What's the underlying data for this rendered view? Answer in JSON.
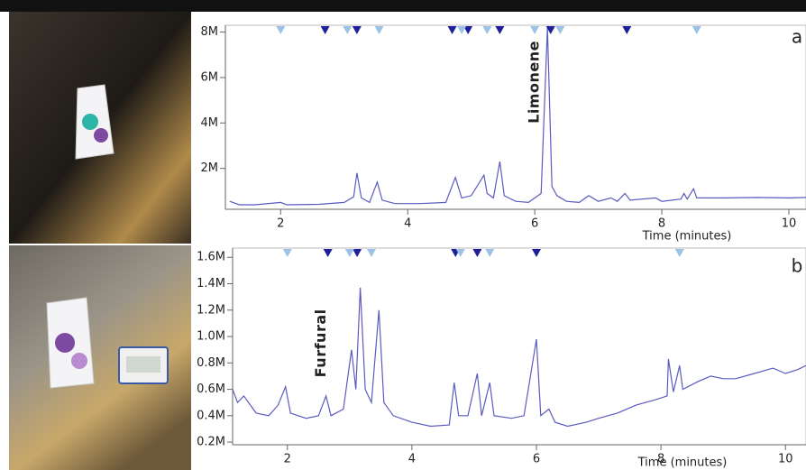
{
  "chart_data": [
    {
      "type": "line",
      "panel": "a",
      "x_label": "Time (minutes)",
      "annotations": [
        "Limonene"
      ],
      "x": [
        1.2,
        1.35,
        1.6,
        2.0,
        2.1,
        2.6,
        3.0,
        3.15,
        3.2,
        3.27,
        3.4,
        3.52,
        3.6,
        3.8,
        4.2,
        4.6,
        4.75,
        4.85,
        5.0,
        5.2,
        5.25,
        5.35,
        5.45,
        5.52,
        5.7,
        5.9,
        6.1,
        6.2,
        6.27,
        6.35,
        6.5,
        6.7,
        6.85,
        7.0,
        7.2,
        7.3,
        7.42,
        7.5,
        7.9,
        8.0,
        8.3,
        8.35,
        8.4,
        8.5,
        8.55,
        9.0,
        9.5,
        10.0,
        10.27
      ],
      "series": [
        {
          "color": "#5b5bc0",
          "values": [
            0.55,
            0.4,
            0.4,
            0.5,
            0.4,
            0.42,
            0.5,
            0.75,
            1.8,
            0.7,
            0.5,
            1.4,
            0.6,
            0.45,
            0.45,
            0.5,
            1.6,
            0.7,
            0.8,
            1.7,
            0.9,
            0.7,
            2.3,
            0.8,
            0.55,
            0.5,
            0.9,
            8.2,
            1.2,
            0.8,
            0.55,
            0.5,
            0.8,
            0.55,
            0.7,
            0.55,
            0.9,
            0.6,
            0.7,
            0.55,
            0.65,
            0.9,
            0.65,
            1.1,
            0.7,
            0.7,
            0.72,
            0.7,
            0.72
          ]
        }
      ],
      "markers": [
        {
          "color": "#1f1f99",
          "x": [
            2.7,
            3.2,
            4.7,
            4.95,
            5.45,
            6.25,
            7.45
          ]
        },
        {
          "color": "#9cc3e6",
          "x": [
            2.0,
            3.05,
            3.55,
            4.85,
            5.25,
            6.0,
            6.4,
            8.55
          ]
        }
      ],
      "xlim": [
        1.13,
        10.27
      ],
      "ylim": [
        0.2,
        8.3
      ],
      "xticks": [
        2,
        4,
        6,
        8,
        10
      ],
      "yticks": [
        {
          "value": 2,
          "label": "2M"
        },
        {
          "value": 4,
          "label": "4M"
        },
        {
          "value": 6,
          "label": "6M"
        },
        {
          "value": 8,
          "label": "8M"
        }
      ]
    },
    {
      "type": "line",
      "panel": "b",
      "x_label": "Time (minutes)",
      "annotations": [
        "Furfural"
      ],
      "x": [
        1.12,
        1.2,
        1.3,
        1.5,
        1.7,
        1.85,
        1.97,
        2.05,
        2.3,
        2.5,
        2.62,
        2.7,
        2.9,
        3.03,
        3.1,
        3.17,
        3.25,
        3.35,
        3.47,
        3.55,
        3.7,
        4.0,
        4.3,
        4.6,
        4.68,
        4.75,
        4.9,
        5.05,
        5.12,
        5.25,
        5.32,
        5.6,
        5.8,
        6.0,
        6.07,
        6.2,
        6.3,
        6.5,
        6.8,
        7.0,
        7.3,
        7.6,
        7.9,
        8.1,
        8.12,
        8.2,
        8.3,
        8.35,
        8.6,
        8.8,
        9.0,
        9.2,
        9.5,
        9.8,
        10.0,
        10.2,
        10.33
      ],
      "series": [
        {
          "color": "#5b5bc0",
          "values": [
            0.6,
            0.5,
            0.55,
            0.42,
            0.4,
            0.48,
            0.62,
            0.42,
            0.38,
            0.4,
            0.55,
            0.4,
            0.45,
            0.9,
            0.6,
            1.37,
            0.6,
            0.5,
            1.2,
            0.5,
            0.4,
            0.35,
            0.32,
            0.33,
            0.65,
            0.4,
            0.4,
            0.72,
            0.4,
            0.65,
            0.4,
            0.38,
            0.4,
            0.98,
            0.4,
            0.45,
            0.35,
            0.32,
            0.35,
            0.38,
            0.42,
            0.48,
            0.52,
            0.55,
            0.83,
            0.58,
            0.78,
            0.6,
            0.66,
            0.7,
            0.68,
            0.68,
            0.72,
            0.76,
            0.72,
            0.75,
            0.78
          ]
        }
      ],
      "markers": [
        {
          "color": "#1f1f99",
          "x": [
            2.65,
            3.12,
            4.7,
            5.05,
            6.0
          ]
        },
        {
          "color": "#9cc3e6",
          "x": [
            2.0,
            3.0,
            3.35,
            4.78,
            5.25,
            8.3
          ]
        }
      ],
      "xlim": [
        1.12,
        10.33
      ],
      "ylim": [
        0.18,
        1.67
      ],
      "xticks": [
        2,
        4,
        6,
        8,
        10
      ],
      "yticks": [
        {
          "value": 0.2,
          "label": "0.2M"
        },
        {
          "value": 0.4,
          "label": "0.4M"
        },
        {
          "value": 0.6,
          "label": "0.6M"
        },
        {
          "value": 0.8,
          "label": "0.8M"
        },
        {
          "value": 1.0,
          "label": "1.0M"
        },
        {
          "value": 1.2,
          "label": "1.2M"
        },
        {
          "value": 1.4,
          "label": "1.4M"
        },
        {
          "value": 1.6,
          "label": "1.6M"
        }
      ]
    }
  ]
}
